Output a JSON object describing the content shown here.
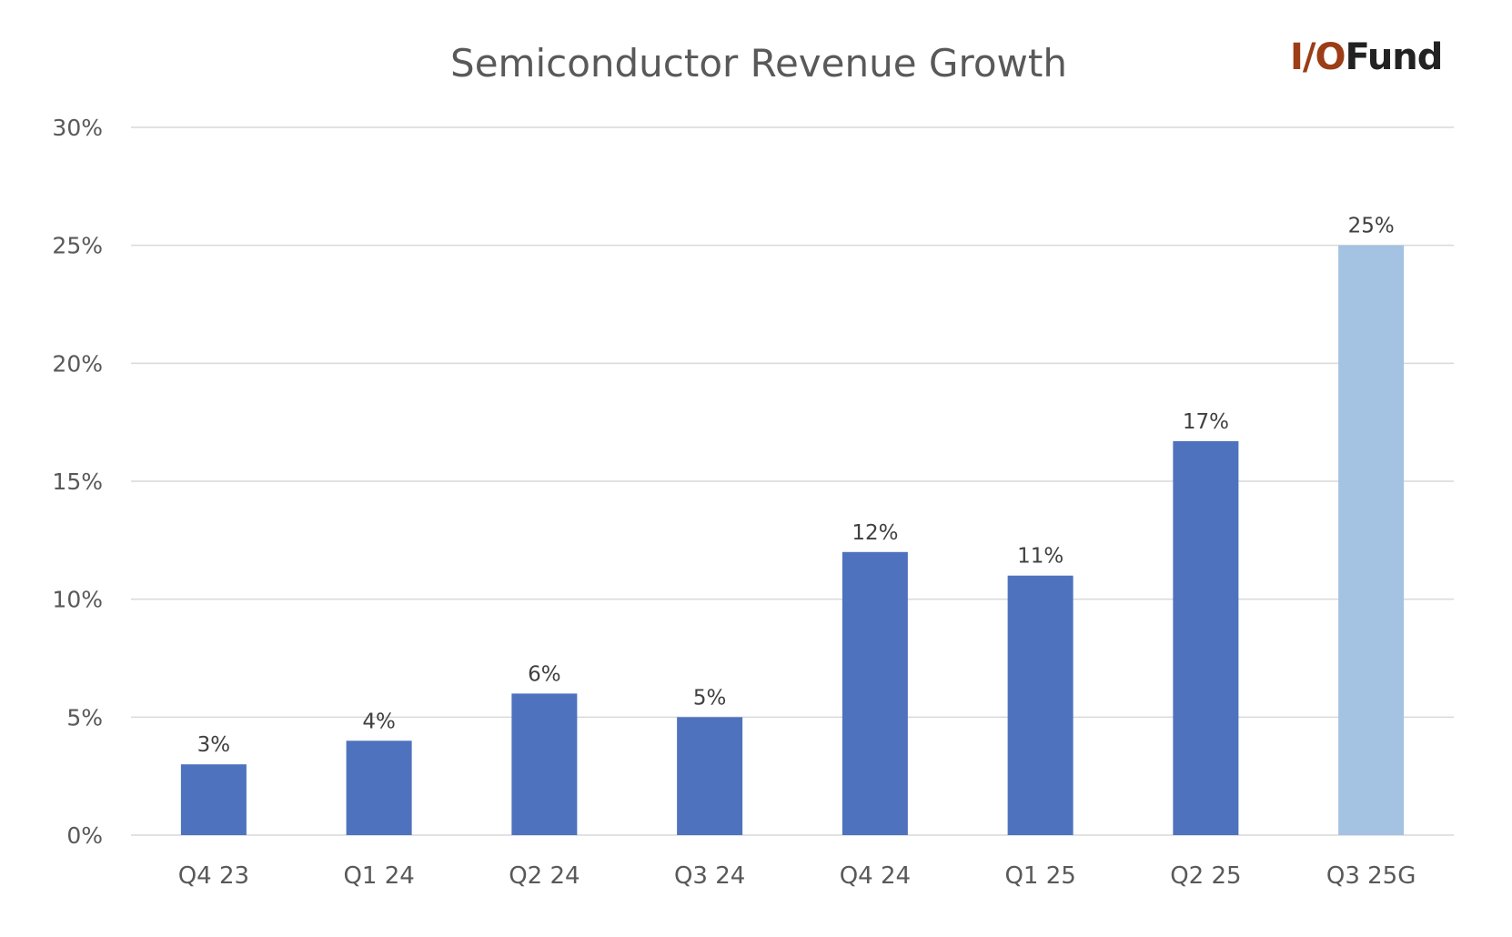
{
  "logo": {
    "part1": "I/O",
    "part2": "Fund",
    "colors": {
      "part1": "#9C3D16",
      "part2": "#222222"
    }
  },
  "chart_data": {
    "type": "bar",
    "title": "Semiconductor Revenue Growth",
    "xlabel": "",
    "ylabel": "",
    "categories": [
      "Q4 23",
      "Q1 24",
      "Q2 24",
      "Q3 24",
      "Q4 24",
      "Q1 25",
      "Q2 25",
      "Q3 25G"
    ],
    "values": [
      3,
      4,
      6,
      5,
      12,
      11,
      16.7,
      25
    ],
    "data_labels": [
      "3%",
      "4%",
      "6%",
      "5%",
      "12%",
      "11%",
      "17%",
      "25%"
    ],
    "ylim": [
      0,
      30
    ],
    "yticks": [
      0,
      5,
      10,
      15,
      20,
      25,
      30
    ],
    "ytick_labels": [
      "0%",
      "5%",
      "10%",
      "15%",
      "20%",
      "25%",
      "30%"
    ],
    "grid": true,
    "legend": "none",
    "colors": {
      "actual": "#4E72BE",
      "guidance": "#A4C2E2",
      "text": "#595959",
      "grid": "#D9D9D9"
    },
    "bar_color_keys": [
      "actual",
      "actual",
      "actual",
      "actual",
      "actual",
      "actual",
      "actual",
      "guidance"
    ]
  }
}
